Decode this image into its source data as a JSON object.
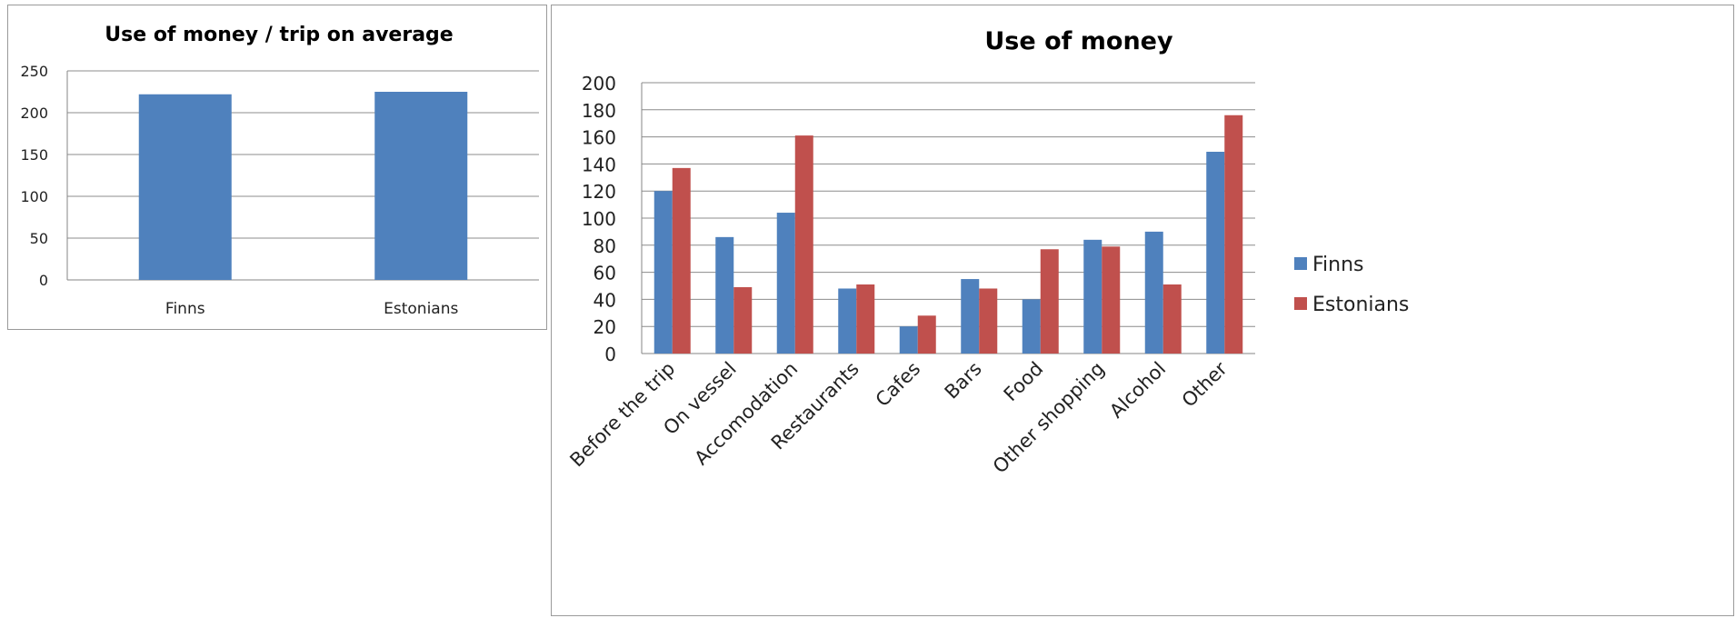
{
  "chart_data": [
    {
      "type": "bar",
      "title": "Use of money / trip on average",
      "categories": [
        "Finns",
        "Estonians"
      ],
      "values": [
        222,
        225
      ],
      "ylim": [
        0,
        250
      ],
      "yticks": [
        0,
        50,
        100,
        150,
        200,
        250
      ],
      "grid": true,
      "color": "#4f81bd"
    },
    {
      "type": "bar",
      "title": "Use of money",
      "categories": [
        "Before the trip",
        "On vessel",
        "Accomodation",
        "Restaurants",
        "Cafes",
        "Bars",
        "Food",
        "Other shopping",
        "Alcohol",
        "Other"
      ],
      "series": [
        {
          "name": "Finns",
          "color": "#4f81bd",
          "values": [
            120,
            86,
            104,
            48,
            20,
            55,
            40,
            84,
            90,
            149
          ]
        },
        {
          "name": "Estonians",
          "color": "#c0504d",
          "values": [
            137,
            49,
            161,
            51,
            28,
            48,
            77,
            79,
            51,
            176
          ]
        }
      ],
      "ylim": [
        0,
        200
      ],
      "yticks": [
        0,
        20,
        40,
        60,
        80,
        100,
        120,
        140,
        160,
        180,
        200
      ],
      "grid": true,
      "legend": "right"
    }
  ]
}
